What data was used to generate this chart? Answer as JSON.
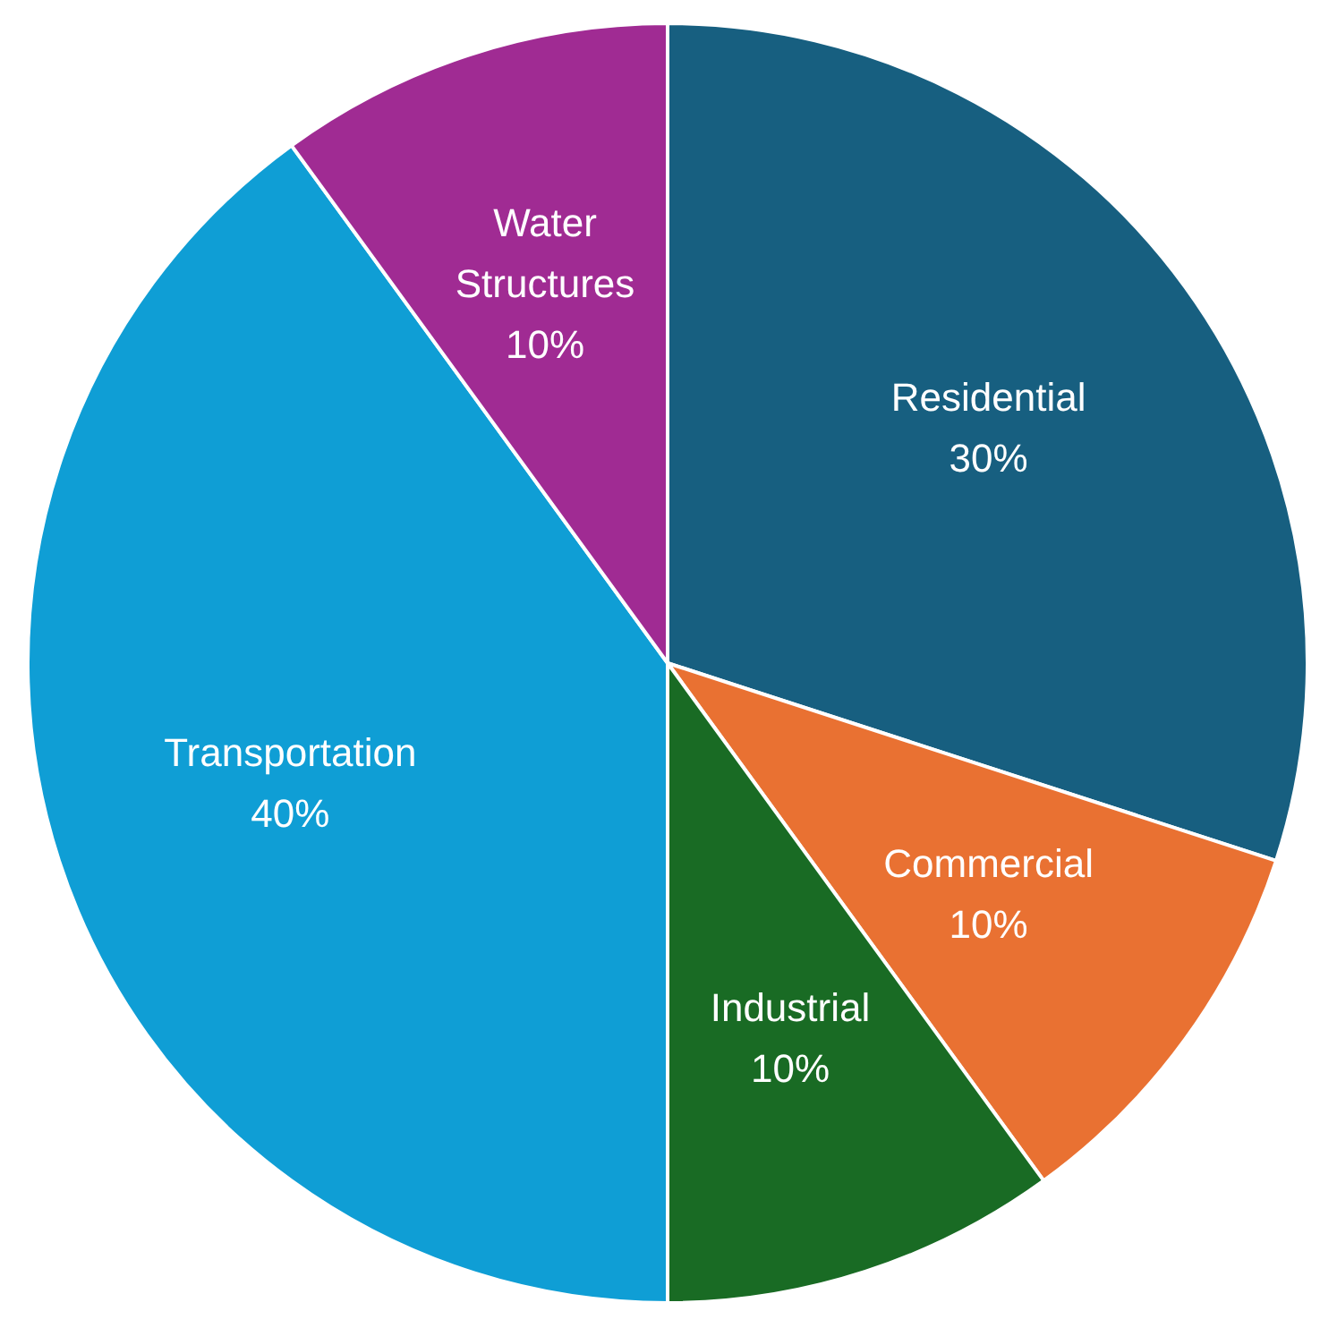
{
  "chart_data": {
    "type": "pie",
    "categories": [
      "Residential",
      "Commercial",
      "Industrial",
      "Transportation",
      "Water Structures"
    ],
    "values": [
      30,
      10,
      10,
      40,
      10
    ],
    "colors": [
      "#175f80",
      "#e97132",
      "#196b24",
      "#0f9ed5",
      "#a02b93"
    ],
    "value_labels": [
      "30%",
      "10%",
      "10%",
      "40%",
      "10%"
    ],
    "legend": false
  }
}
